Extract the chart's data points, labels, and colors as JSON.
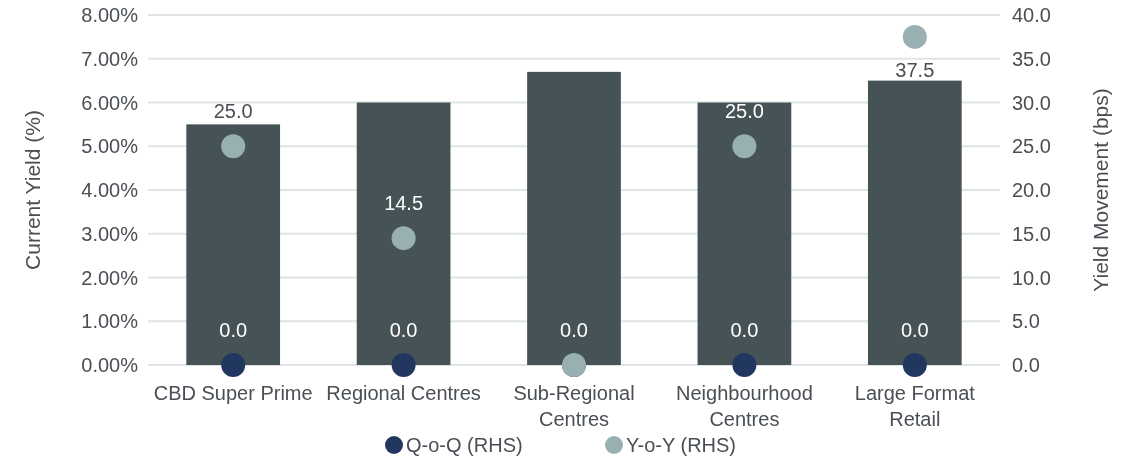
{
  "chart_data": {
    "type": "bar",
    "categories": [
      "CBD Super Prime",
      "Regional Centres",
      "Sub-Regional Centres",
      "Neighbourhood Centres",
      "Large Format Retail"
    ],
    "series": [
      {
        "color": "#455256",
        "values": [
          5.5,
          6.0,
          6.7,
          6.0,
          6.5
        ]
      },
      {
        "type": "scatter",
        "name": "Q-o-Q (RHS)",
        "axis": "y2",
        "color": "#22375f",
        "values": [
          0,
          0,
          0,
          0,
          0
        ],
        "value_labels": [
          "0.0",
          "0.0",
          "0.0",
          "0.0",
          "0.0"
        ]
      },
      {
        "type": "scatter",
        "name": "Y-o-Y (RHS)",
        "axis": "y2",
        "color": "#98b0b2",
        "values": [
          25,
          14.5,
          0,
          25,
          37.5
        ],
        "value_labels": [
          "25.0",
          "14.5",
          null,
          "25.0",
          "37.5"
        ]
      }
    ],
    "ylabel": "Current Yield (%)",
    "y2label": "Yield Movement (bps)",
    "ylim": [
      0,
      8
    ],
    "yticks": [
      {
        "value": 0,
        "label": "0.00%"
      },
      {
        "value": 1,
        "label": "1.00%"
      },
      {
        "value": 2,
        "label": "2.00%"
      },
      {
        "value": 3,
        "label": "3.00%"
      },
      {
        "value": 4,
        "label": "4.00%"
      },
      {
        "value": 5,
        "label": "5.00%"
      },
      {
        "value": 6,
        "label": "6.00%"
      },
      {
        "value": 7,
        "label": "7.00%"
      },
      {
        "value": 8,
        "label": "8.00%"
      }
    ],
    "y2lim": [
      0,
      40
    ],
    "y2ticks": [
      {
        "value": 0,
        "label": "0.0"
      },
      {
        "value": 5,
        "label": "5.0"
      },
      {
        "value": 10,
        "label": "10.0"
      },
      {
        "value": 15,
        "label": "15.0"
      },
      {
        "value": 20,
        "label": "20.0"
      },
      {
        "value": 25,
        "label": "25.0"
      },
      {
        "value": 30,
        "label": "30.0"
      },
      {
        "value": 35,
        "label": "35.0"
      },
      {
        "value": 40,
        "label": "40.0"
      }
    ],
    "grid": "y",
    "legend": "bottom",
    "marker": "circle"
  }
}
